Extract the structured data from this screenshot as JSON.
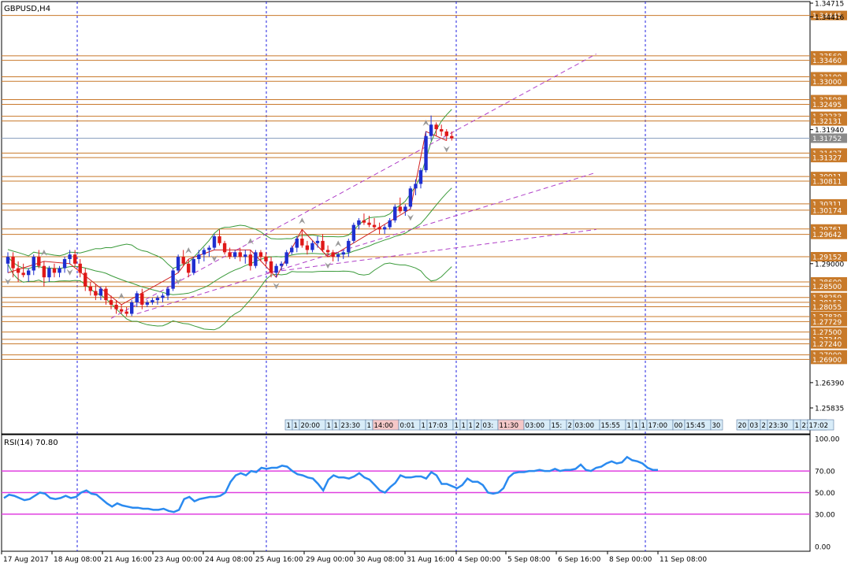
{
  "window": {
    "title": "GBPUSD,H4"
  },
  "rsi_panel": {
    "label": "RSI(14) 70.80"
  },
  "colors": {
    "bull": "#1f2fd0",
    "bear": "#e01818",
    "bollinger": "#3a9a3a",
    "channel": "#b040c8",
    "hline": "#c8782a",
    "rsi_line": "#2a8af0",
    "rsi_level": "#e040e0",
    "vgrid": "#1f1fe0",
    "zigzag": "#d02020",
    "fractal": "#9a9a9a"
  },
  "icons": {
    "fractal_up": "fractal-up-arrow",
    "fractal_down": "fractal-down-arrow"
  },
  "chart_data": [
    {
      "type": "candlestick",
      "title": "GBPUSD,H4",
      "price_axis_ticks": [
        "1.34715",
        "1.34416",
        "1.31940",
        "1.29000",
        "1.26390",
        "1.25835"
      ],
      "price_level_labels": [
        {
          "text": "1.34445",
          "price": 1.34445
        },
        {
          "text": "1.33560",
          "price": 1.3356
        },
        {
          "text": "1.33460",
          "price": 1.3346
        },
        {
          "text": "1.33100",
          "price": 1.331
        },
        {
          "text": "1.33000",
          "price": 1.33
        },
        {
          "text": "1.32598",
          "price": 1.32598
        },
        {
          "text": "1.32495",
          "price": 1.32495
        },
        {
          "text": "1.32233",
          "price": 1.32233
        },
        {
          "text": "1.32131",
          "price": 1.32131
        },
        {
          "text": "1.31752",
          "price": 1.31752
        },
        {
          "text": "1.31427",
          "price": 1.31427
        },
        {
          "text": "1.31327",
          "price": 1.31327
        },
        {
          "text": "1.30911",
          "price": 1.30911
        },
        {
          "text": "1.30811",
          "price": 1.30811
        },
        {
          "text": "1.30311",
          "price": 1.30311
        },
        {
          "text": "1.30174",
          "price": 1.30174
        },
        {
          "text": "1.29761",
          "price": 1.29761
        },
        {
          "text": "1.29642",
          "price": 1.29642
        },
        {
          "text": "1.29152",
          "price": 1.29152
        },
        {
          "text": "1.28600",
          "price": 1.286
        },
        {
          "text": "1.28500",
          "price": 1.285
        },
        {
          "text": "1.28259",
          "price": 1.28259
        },
        {
          "text": "1.28153",
          "price": 1.28153
        },
        {
          "text": "1.28055",
          "price": 1.28055
        },
        {
          "text": "1.27839",
          "price": 1.27839
        },
        {
          "text": "1.27729",
          "price": 1.27729
        },
        {
          "text": "1.27500",
          "price": 1.275
        },
        {
          "text": "1.27340",
          "price": 1.2734
        },
        {
          "text": "1.27240",
          "price": 1.2724
        },
        {
          "text": "1.27000",
          "price": 1.27
        },
        {
          "text": "1.26900",
          "price": 1.269
        }
      ],
      "time_axis_labels": [
        "17 Aug 2017",
        "18 Aug 08:00",
        "21 Aug 16:00",
        "23 Aug 00:00",
        "24 Aug 08:00",
        "25 Aug 16:00",
        "29 Aug 00:00",
        "30 Aug 08:00",
        "31 Aug 16:00",
        "4 Sep 00:00",
        "5 Sep 08:00",
        "6 Sep 16:00",
        "8 Sep 00:00",
        "11 Sep 08:00"
      ],
      "session_labels": [
        "1",
        "1",
        "20:00",
        "1",
        "1",
        "23:30",
        "1",
        "14:00",
        "0:01",
        "1",
        "17:03",
        "1",
        "1",
        "1",
        "2",
        "03:",
        "11:30",
        "03:00",
        "15:",
        "2",
        "03:00",
        "15:55",
        "1",
        "1",
        "1",
        "17:00",
        "00",
        "15:45",
        "30",
        "20",
        "03",
        "2",
        "23:30",
        "1",
        "21:00",
        "1",
        "17:02"
      ],
      "candles": [
        {
          "o": 1.29,
          "h": 1.2925,
          "l": 1.288,
          "c": 1.2915
        },
        {
          "o": 1.2915,
          "h": 1.2925,
          "l": 1.287,
          "c": 1.289
        },
        {
          "o": 1.289,
          "h": 1.2905,
          "l": 1.286,
          "c": 1.288
        },
        {
          "o": 1.288,
          "h": 1.29,
          "l": 1.287,
          "c": 1.2875
        },
        {
          "o": 1.2875,
          "h": 1.289,
          "l": 1.286,
          "c": 1.2885
        },
        {
          "o": 1.2885,
          "h": 1.292,
          "l": 1.2875,
          "c": 1.2915
        },
        {
          "o": 1.2915,
          "h": 1.293,
          "l": 1.289,
          "c": 1.2895
        },
        {
          "o": 1.2895,
          "h": 1.2905,
          "l": 1.285,
          "c": 1.287
        },
        {
          "o": 1.287,
          "h": 1.2895,
          "l": 1.286,
          "c": 1.289
        },
        {
          "o": 1.289,
          "h": 1.29,
          "l": 1.287,
          "c": 1.288
        },
        {
          "o": 1.288,
          "h": 1.2895,
          "l": 1.287,
          "c": 1.289
        },
        {
          "o": 1.289,
          "h": 1.2915,
          "l": 1.288,
          "c": 1.291
        },
        {
          "o": 1.291,
          "h": 1.293,
          "l": 1.29,
          "c": 1.292
        },
        {
          "o": 1.292,
          "h": 1.293,
          "l": 1.2895,
          "c": 1.29
        },
        {
          "o": 1.29,
          "h": 1.291,
          "l": 1.287,
          "c": 1.288
        },
        {
          "o": 1.288,
          "h": 1.289,
          "l": 1.284,
          "c": 1.285
        },
        {
          "o": 1.285,
          "h": 1.286,
          "l": 1.283,
          "c": 1.284
        },
        {
          "o": 1.284,
          "h": 1.2855,
          "l": 1.282,
          "c": 1.283
        },
        {
          "o": 1.283,
          "h": 1.285,
          "l": 1.282,
          "c": 1.2845
        },
        {
          "o": 1.2845,
          "h": 1.285,
          "l": 1.281,
          "c": 1.282
        },
        {
          "o": 1.282,
          "h": 1.283,
          "l": 1.28,
          "c": 1.281
        },
        {
          "o": 1.281,
          "h": 1.282,
          "l": 1.279,
          "c": 1.28
        },
        {
          "o": 1.28,
          "h": 1.281,
          "l": 1.279,
          "c": 1.2795
        },
        {
          "o": 1.2795,
          "h": 1.2805,
          "l": 1.2785,
          "c": 1.279
        },
        {
          "o": 1.279,
          "h": 1.282,
          "l": 1.2785,
          "c": 1.2815
        },
        {
          "o": 1.2815,
          "h": 1.284,
          "l": 1.2805,
          "c": 1.2835
        },
        {
          "o": 1.2835,
          "h": 1.2845,
          "l": 1.28,
          "c": 1.281
        },
        {
          "o": 1.281,
          "h": 1.282,
          "l": 1.2805,
          "c": 1.2815
        },
        {
          "o": 1.2815,
          "h": 1.2825,
          "l": 1.281,
          "c": 1.282
        },
        {
          "o": 1.282,
          "h": 1.283,
          "l": 1.281,
          "c": 1.2825
        },
        {
          "o": 1.2825,
          "h": 1.2835,
          "l": 1.2815,
          "c": 1.283
        },
        {
          "o": 1.283,
          "h": 1.285,
          "l": 1.282,
          "c": 1.2845
        },
        {
          "o": 1.2845,
          "h": 1.289,
          "l": 1.284,
          "c": 1.2885
        },
        {
          "o": 1.2885,
          "h": 1.292,
          "l": 1.288,
          "c": 1.2915
        },
        {
          "o": 1.2915,
          "h": 1.293,
          "l": 1.2895,
          "c": 1.29
        },
        {
          "o": 1.29,
          "h": 1.291,
          "l": 1.287,
          "c": 1.288
        },
        {
          "o": 1.288,
          "h": 1.2915,
          "l": 1.2875,
          "c": 1.291
        },
        {
          "o": 1.291,
          "h": 1.293,
          "l": 1.29,
          "c": 1.292
        },
        {
          "o": 1.292,
          "h": 1.2935,
          "l": 1.2905,
          "c": 1.293
        },
        {
          "o": 1.293,
          "h": 1.294,
          "l": 1.2915,
          "c": 1.2935
        },
        {
          "o": 1.2935,
          "h": 1.2965,
          "l": 1.293,
          "c": 1.296
        },
        {
          "o": 1.296,
          "h": 1.2975,
          "l": 1.294,
          "c": 1.2945
        },
        {
          "o": 1.2945,
          "h": 1.295,
          "l": 1.292,
          "c": 1.2925
        },
        {
          "o": 1.2925,
          "h": 1.2935,
          "l": 1.291,
          "c": 1.2915
        },
        {
          "o": 1.2915,
          "h": 1.293,
          "l": 1.291,
          "c": 1.2925
        },
        {
          "o": 1.2925,
          "h": 1.2935,
          "l": 1.2905,
          "c": 1.2915
        },
        {
          "o": 1.2915,
          "h": 1.293,
          "l": 1.29,
          "c": 1.292
        },
        {
          "o": 1.292,
          "h": 1.293,
          "l": 1.2885,
          "c": 1.2895
        },
        {
          "o": 1.2895,
          "h": 1.293,
          "l": 1.289,
          "c": 1.2925
        },
        {
          "o": 1.2925,
          "h": 1.293,
          "l": 1.2905,
          "c": 1.2915
        },
        {
          "o": 1.2915,
          "h": 1.2925,
          "l": 1.2895,
          "c": 1.2905
        },
        {
          "o": 1.2905,
          "h": 1.2915,
          "l": 1.287,
          "c": 1.288
        },
        {
          "o": 1.288,
          "h": 1.29,
          "l": 1.287,
          "c": 1.2895
        },
        {
          "o": 1.2895,
          "h": 1.2905,
          "l": 1.2885,
          "c": 1.29
        },
        {
          "o": 1.29,
          "h": 1.293,
          "l": 1.2895,
          "c": 1.2925
        },
        {
          "o": 1.2925,
          "h": 1.294,
          "l": 1.292,
          "c": 1.2935
        },
        {
          "o": 1.2935,
          "h": 1.296,
          "l": 1.2925,
          "c": 1.2955
        },
        {
          "o": 1.2955,
          "h": 1.2975,
          "l": 1.2935,
          "c": 1.294
        },
        {
          "o": 1.294,
          "h": 1.295,
          "l": 1.292,
          "c": 1.293
        },
        {
          "o": 1.293,
          "h": 1.295,
          "l": 1.2925,
          "c": 1.2945
        },
        {
          "o": 1.2945,
          "h": 1.296,
          "l": 1.2935,
          "c": 1.295
        },
        {
          "o": 1.295,
          "h": 1.2965,
          "l": 1.2925,
          "c": 1.293
        },
        {
          "o": 1.293,
          "h": 1.294,
          "l": 1.2915,
          "c": 1.2925
        },
        {
          "o": 1.2925,
          "h": 1.293,
          "l": 1.2905,
          "c": 1.2915
        },
        {
          "o": 1.2915,
          "h": 1.2925,
          "l": 1.2905,
          "c": 1.292
        },
        {
          "o": 1.292,
          "h": 1.293,
          "l": 1.291,
          "c": 1.2925
        },
        {
          "o": 1.2925,
          "h": 1.2955,
          "l": 1.2915,
          "c": 1.295
        },
        {
          "o": 1.295,
          "h": 1.299,
          "l": 1.2945,
          "c": 1.2985
        },
        {
          "o": 1.2985,
          "h": 1.3,
          "l": 1.2975,
          "c": 1.2995
        },
        {
          "o": 1.2995,
          "h": 1.301,
          "l": 1.2985,
          "c": 1.299
        },
        {
          "o": 1.299,
          "h": 1.3005,
          "l": 1.298,
          "c": 1.2985
        },
        {
          "o": 1.2985,
          "h": 1.3,
          "l": 1.2975,
          "c": 1.298
        },
        {
          "o": 1.298,
          "h": 1.299,
          "l": 1.2965,
          "c": 1.2975
        },
        {
          "o": 1.2975,
          "h": 1.2985,
          "l": 1.2965,
          "c": 1.298
        },
        {
          "o": 1.298,
          "h": 1.3,
          "l": 1.2975,
          "c": 1.2995
        },
        {
          "o": 1.2995,
          "h": 1.303,
          "l": 1.299,
          "c": 1.3025
        },
        {
          "o": 1.3025,
          "h": 1.3045,
          "l": 1.301,
          "c": 1.3015
        },
        {
          "o": 1.3015,
          "h": 1.303,
          "l": 1.3005,
          "c": 1.3025
        },
        {
          "o": 1.3025,
          "h": 1.307,
          "l": 1.302,
          "c": 1.3065
        },
        {
          "o": 1.3065,
          "h": 1.3085,
          "l": 1.305,
          "c": 1.3075
        },
        {
          "o": 1.3075,
          "h": 1.311,
          "l": 1.3065,
          "c": 1.3105
        },
        {
          "o": 1.3105,
          "h": 1.319,
          "l": 1.31,
          "c": 1.318
        },
        {
          "o": 1.318,
          "h": 1.3225,
          "l": 1.317,
          "c": 1.3205
        },
        {
          "o": 1.3205,
          "h": 1.321,
          "l": 1.318,
          "c": 1.3195
        },
        {
          "o": 1.3195,
          "h": 1.3205,
          "l": 1.318,
          "c": 1.319
        },
        {
          "o": 1.319,
          "h": 1.3195,
          "l": 1.317,
          "c": 1.318
        },
        {
          "o": 1.318,
          "h": 1.319,
          "l": 1.317,
          "c": 1.3175
        }
      ]
    },
    {
      "type": "line",
      "title": "RSI(14) 70.80",
      "y_axis_ticks": [
        "100.00",
        "70.00",
        "50.00",
        "30.00",
        "0.00"
      ],
      "ylim": [
        0,
        100
      ],
      "levels": [
        70,
        50,
        30
      ],
      "values": [
        45,
        48,
        47,
        45,
        43,
        44,
        47,
        50,
        49,
        45,
        44,
        45,
        47,
        45,
        46,
        50,
        52,
        49,
        48,
        44,
        40,
        37,
        40,
        38,
        37,
        36,
        36,
        35,
        35,
        34,
        34,
        35,
        33,
        32,
        34,
        44,
        46,
        42,
        44,
        45,
        46,
        46,
        47,
        50,
        60,
        66,
        68,
        66,
        70,
        69,
        73,
        72,
        73,
        73,
        75,
        74,
        70,
        67,
        66,
        64,
        63,
        58,
        52,
        62,
        66,
        64,
        64,
        63,
        65,
        68,
        64,
        62,
        57,
        52,
        50,
        55,
        59,
        66,
        64,
        64,
        65,
        65,
        63,
        69,
        66,
        58,
        58,
        56,
        54,
        57,
        63,
        60,
        60,
        57,
        50,
        49,
        50,
        54,
        64,
        68,
        69,
        69,
        70,
        70,
        71,
        70,
        70,
        72,
        70,
        71,
        71,
        72,
        76,
        71,
        70,
        73,
        74,
        77,
        79,
        77,
        78,
        83,
        80,
        79,
        77,
        73,
        71,
        71
      ]
    }
  ]
}
